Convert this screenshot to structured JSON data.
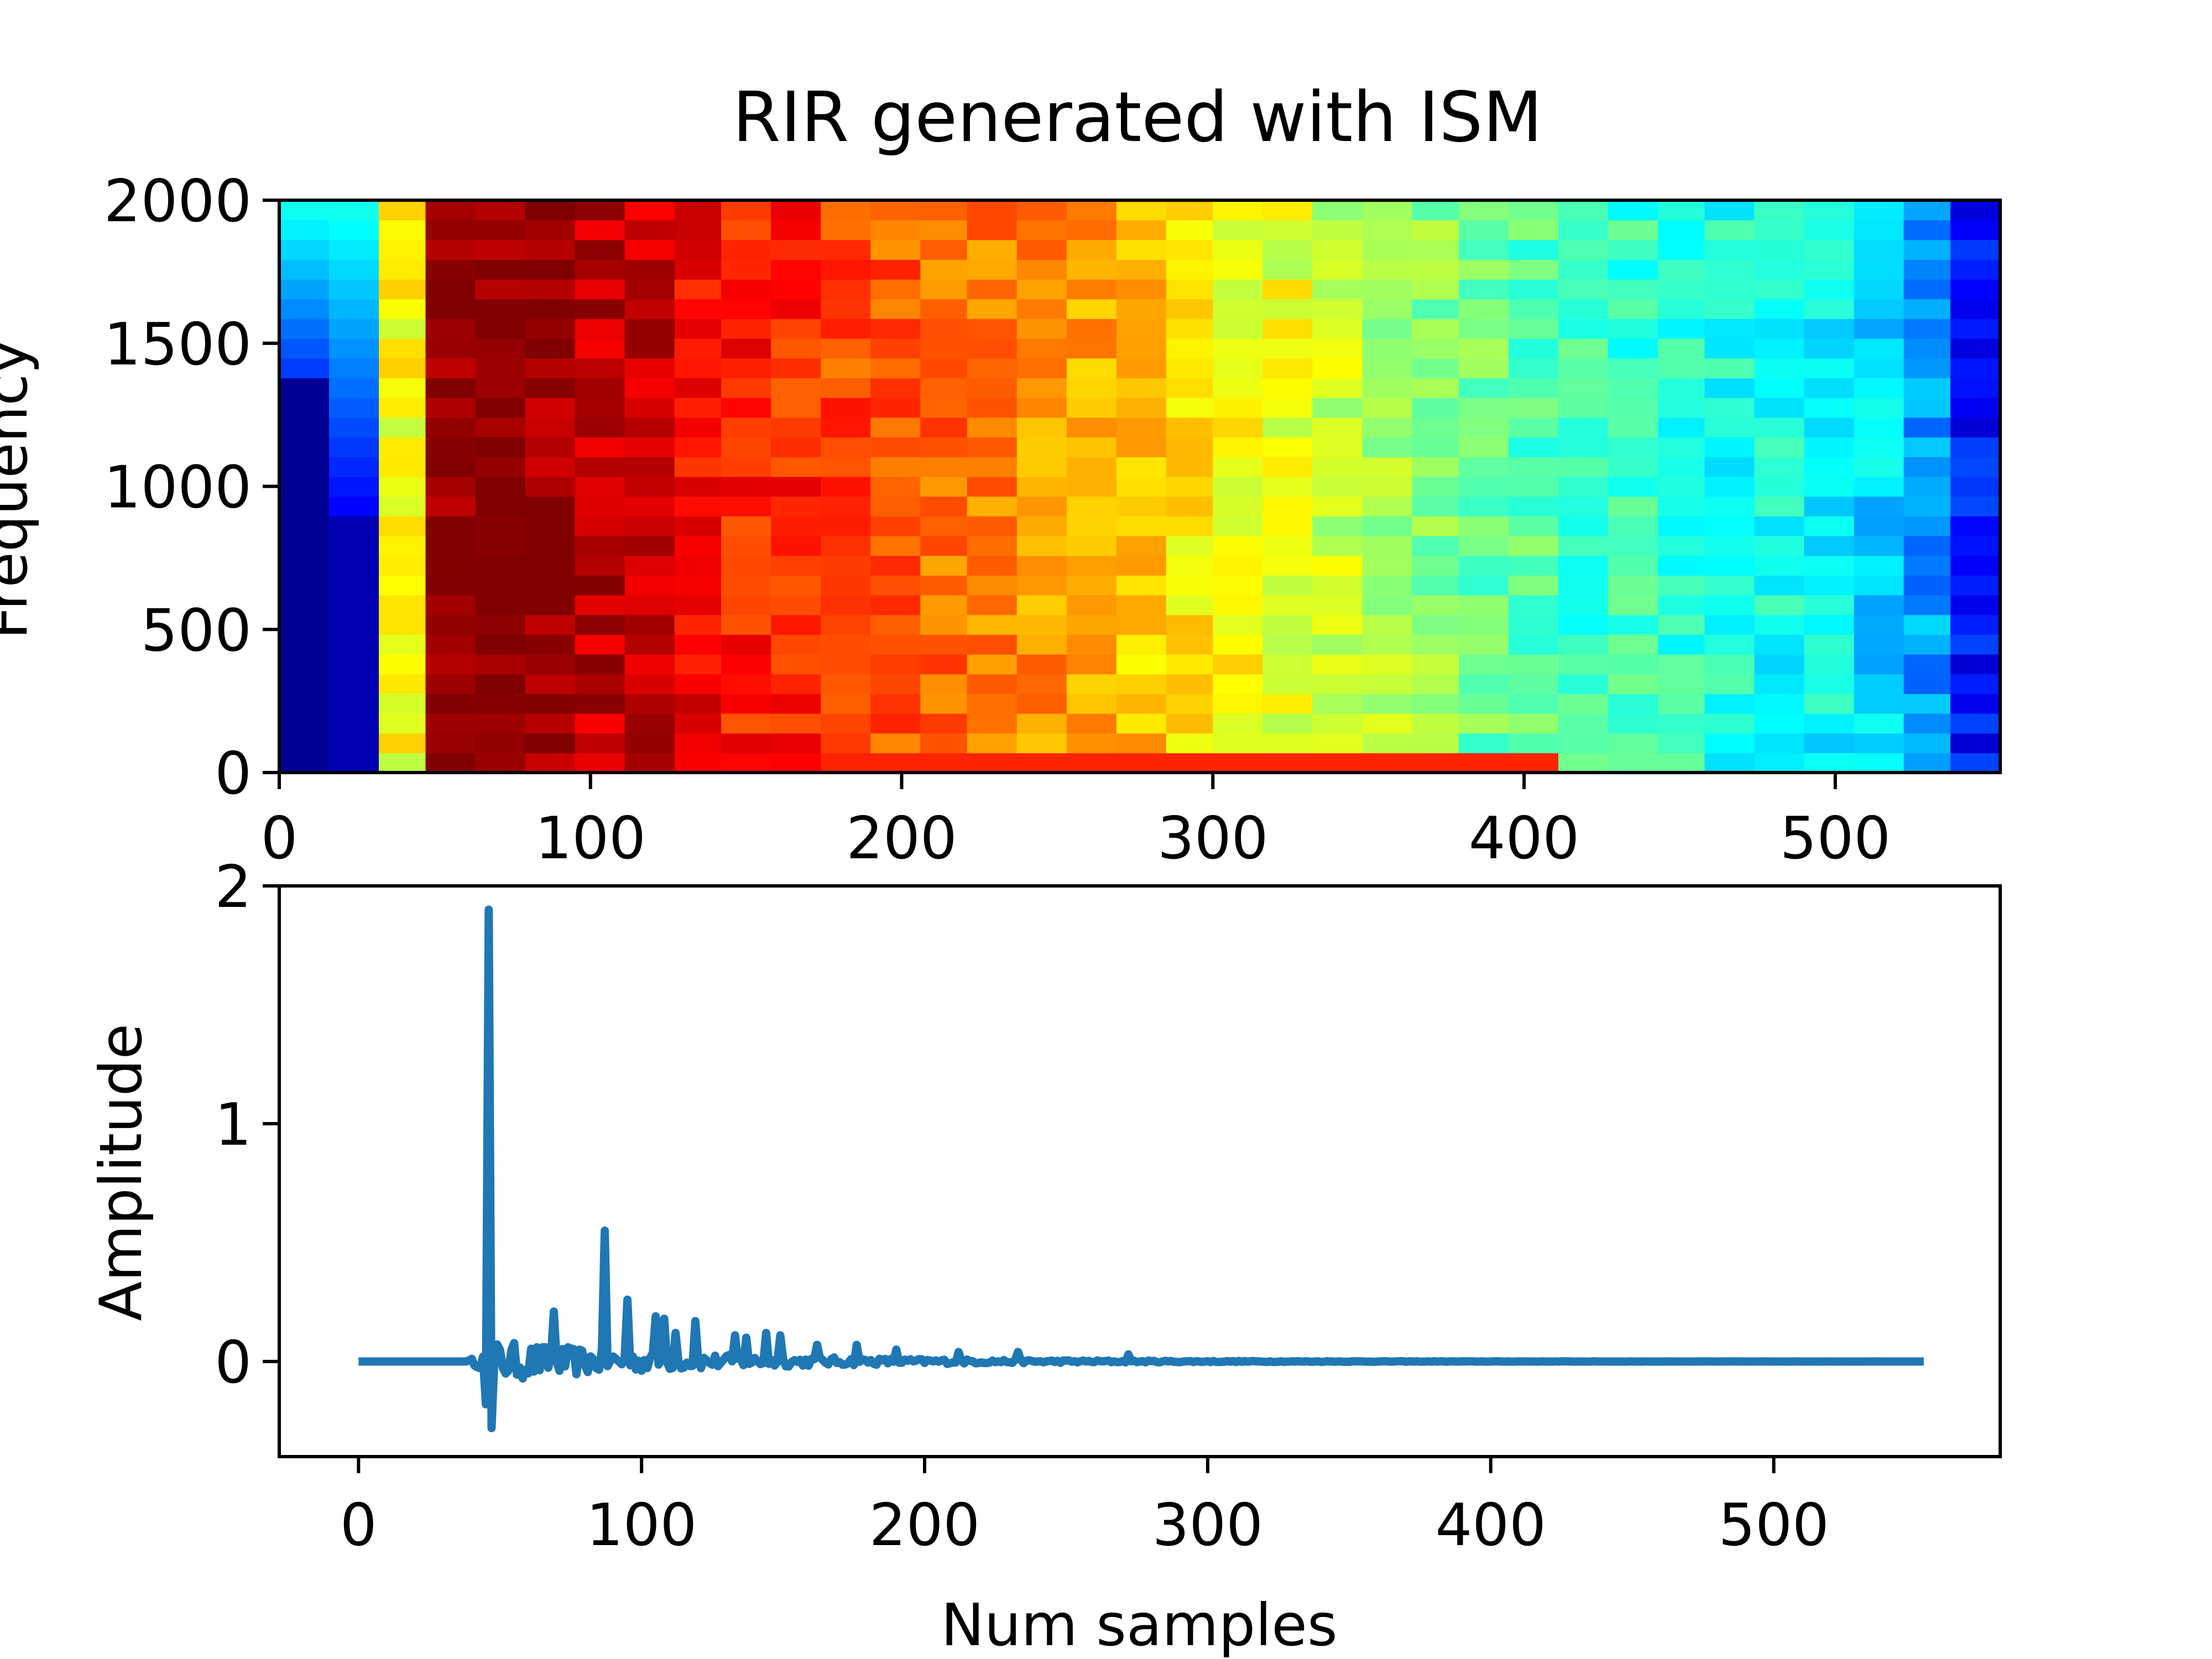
{
  "figure": {
    "title": "RIR generated with ISM"
  },
  "chart_data": [
    {
      "type": "heatmap",
      "subplot": "top",
      "ylabel": "Frequency",
      "xlabel": "",
      "xlim": [
        0,
        553
      ],
      "ylim": [
        0,
        2000
      ],
      "x_ticks": [
        0,
        100,
        200,
        300,
        400,
        500
      ],
      "y_ticks": [
        0,
        500,
        1000,
        1500,
        2000
      ],
      "colormap": "jet",
      "grid": false,
      "time_bin_edges": [
        0,
        16,
        32,
        47,
        63,
        79,
        95,
        111,
        127,
        142,
        158,
        174,
        190,
        206,
        221,
        237,
        253,
        269,
        285,
        300,
        316,
        332,
        348,
        364,
        379,
        395,
        411,
        427,
        443,
        458,
        474,
        490,
        506,
        522,
        537,
        553
      ],
      "freq_bin_count": 29,
      "freq_max": 2000,
      "column_base_levels": [
        0.05,
        0.28,
        0.62,
        0.99,
        0.99,
        0.98,
        0.94,
        0.92,
        0.88,
        0.85,
        0.84,
        0.8,
        0.79,
        0.77,
        0.75,
        0.73,
        0.72,
        0.68,
        0.65,
        0.62,
        0.6,
        0.57,
        0.54,
        0.51,
        0.48,
        0.46,
        0.44,
        0.43,
        0.42,
        0.4,
        0.39,
        0.38,
        0.34,
        0.28,
        0.14
      ],
      "special_columns": {
        "0": "dark blue below ~1400 Hz, lighter blue above",
        "1": "blue, brighter toward high frequencies"
      },
      "low_freq_band": "strong red/orange energy near 0 Hz from ~95 to ~330 samples"
    },
    {
      "type": "line",
      "subplot": "bottom",
      "xlabel": "Num samples",
      "ylabel": "Amplitude",
      "xlim": [
        -28,
        580
      ],
      "ylim": [
        -0.4,
        2.0
      ],
      "x_ticks": [
        0,
        100,
        200,
        300,
        400,
        500
      ],
      "y_ticks": [
        0,
        1,
        2
      ],
      "color": "#1f77b4",
      "grid": false,
      "n_samples": 554,
      "peaks": [
        {
          "x": 46,
          "y": 1.9
        },
        {
          "x": 47,
          "y": -0.28
        },
        {
          "x": 45,
          "y": -0.18
        },
        {
          "x": 69,
          "y": 0.21
        },
        {
          "x": 87,
          "y": 0.55
        },
        {
          "x": 95,
          "y": 0.26
        },
        {
          "x": 105,
          "y": 0.19
        },
        {
          "x": 108,
          "y": 0.18
        },
        {
          "x": 112,
          "y": 0.12
        },
        {
          "x": 119,
          "y": 0.17
        },
        {
          "x": 133,
          "y": 0.11
        },
        {
          "x": 137,
          "y": 0.1
        },
        {
          "x": 144,
          "y": 0.12
        },
        {
          "x": 149,
          "y": 0.11
        },
        {
          "x": 162,
          "y": 0.07
        },
        {
          "x": 176,
          "y": 0.07
        },
        {
          "x": 190,
          "y": 0.05
        },
        {
          "x": 212,
          "y": 0.04
        },
        {
          "x": 233,
          "y": 0.04
        },
        {
          "x": 272,
          "y": 0.03
        }
      ]
    }
  ]
}
